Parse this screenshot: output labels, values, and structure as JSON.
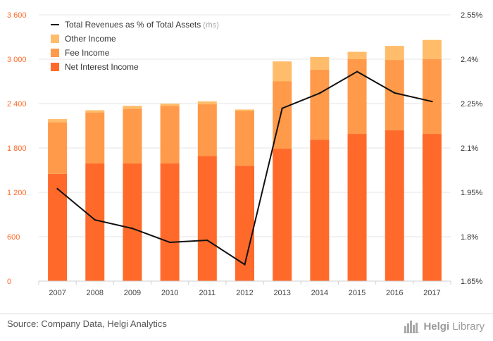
{
  "chart_data": {
    "type": "bar",
    "categories": [
      "2007",
      "2008",
      "2009",
      "2010",
      "2011",
      "2012",
      "2013",
      "2014",
      "2015",
      "2016",
      "2017"
    ],
    "series": [
      {
        "name": "Net Interest Income",
        "kind": "stacked-bar",
        "color": "#ff6a2b",
        "values": [
          1450,
          1590,
          1590,
          1590,
          1690,
          1560,
          1790,
          1910,
          1990,
          2040,
          1990
        ]
      },
      {
        "name": "Fee Income",
        "kind": "stacked-bar",
        "color": "#ff9a4a",
        "values": [
          700,
          690,
          740,
          780,
          700,
          740,
          910,
          950,
          1010,
          950,
          1010
        ]
      },
      {
        "name": "Other Income",
        "kind": "stacked-bar",
        "color": "#ffbd6b",
        "values": [
          40,
          30,
          40,
          30,
          40,
          20,
          270,
          170,
          100,
          190,
          260
        ]
      },
      {
        "name": "Total Revenues as % of Total Assets",
        "kind": "line",
        "axis": "right",
        "color": "#111111",
        "values": [
          1.962,
          1.857,
          1.828,
          1.781,
          1.788,
          1.706,
          2.234,
          2.285,
          2.358,
          2.286,
          2.257
        ]
      }
    ],
    "legend": {
      "position": "top-left",
      "entries": [
        {
          "label": "Total Revenues as % of Total Assets",
          "suffix": "(rhs)",
          "marker": "line",
          "color": "#111111"
        },
        {
          "label": "Other Income",
          "marker": "square",
          "color": "#ffbd6b"
        },
        {
          "label": "Fee Income",
          "marker": "square",
          "color": "#ff9a4a"
        },
        {
          "label": "Net Interest Income",
          "marker": "square",
          "color": "#ff6a2b"
        }
      ]
    },
    "y_left": {
      "ylim": [
        0,
        3600
      ],
      "ticks": [
        0,
        600,
        1200,
        1800,
        2400,
        3000,
        3600
      ],
      "tick_labels": [
        "0",
        "600",
        "1 200",
        "1 800",
        "2 400",
        "3 000",
        "3 600"
      ],
      "color": "#ff6a2b"
    },
    "y_right": {
      "ylim": [
        1.65,
        2.55
      ],
      "ticks": [
        1.65,
        1.8,
        1.95,
        2.1,
        2.25,
        2.4,
        2.55
      ],
      "tick_labels": [
        "1.65%",
        "1.8%",
        "1.95%",
        "2.1%",
        "2.25%",
        "2.4%",
        "2.55%"
      ]
    },
    "grid": true
  },
  "footer": {
    "source": "Source: Company Data, Helgi Analytics",
    "logo_a": "Helgi",
    "logo_b": "Library"
  }
}
